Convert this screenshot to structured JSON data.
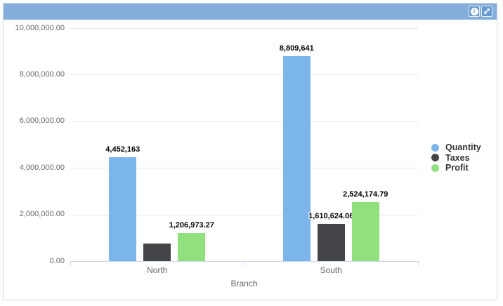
{
  "widget": {
    "header": {
      "background": "#84afdc",
      "button_background": "#699bd1",
      "info_glyph": "i",
      "buttons": [
        {
          "name": "info",
          "icon": "info-icon"
        },
        {
          "name": "expand",
          "icon": "expand-icon"
        }
      ]
    }
  },
  "colors": {
    "widget_border": "#d9d9d9",
    "gridline": "#e6e6e6",
    "axis_line": "#ccd6eb",
    "axis_text": "#666666",
    "data_label": "#000000",
    "legend_text": "#333333"
  },
  "chart_data": {
    "type": "bar",
    "title": "",
    "categories": [
      "North",
      "South"
    ],
    "series": [
      {
        "name": "Quantity",
        "color": "#7cb5ec",
        "values": [
          4452163,
          8809641
        ],
        "labels": [
          "4,452,163",
          "8,809,641"
        ]
      },
      {
        "name": "Taxes",
        "color": "#434348",
        "values": [
          760000,
          1610624.06
        ],
        "labels": [
          "",
          "1,610,624.06"
        ]
      },
      {
        "name": "Profit",
        "color": "#90e07d",
        "values": [
          1206973.27,
          2524174.79
        ],
        "labels": [
          "1,206,973.27",
          "2,524,174.79"
        ]
      }
    ],
    "xlabel": "Branch",
    "ylabel": "",
    "ylim": [
      0,
      10000000
    ],
    "ytick_labels": [
      "0.00",
      "2,000,000.00",
      "4,000,000.00",
      "6,000,000.00",
      "8,000,000.00",
      "10,000,000.00"
    ],
    "grid": true,
    "legend_position": "right"
  }
}
